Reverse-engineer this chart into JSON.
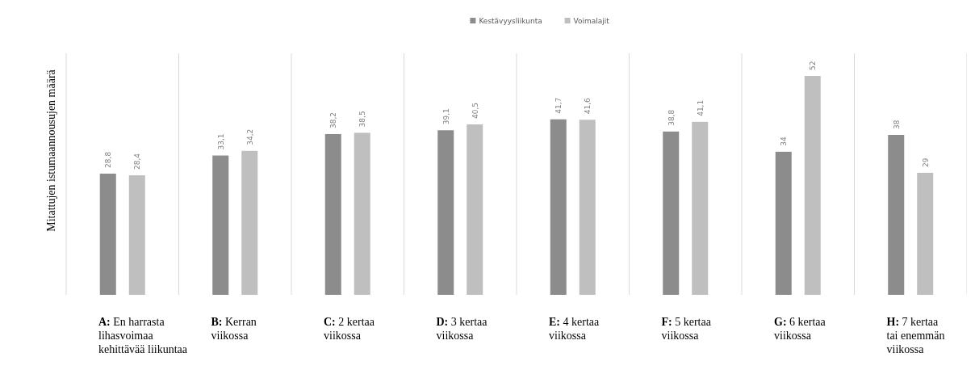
{
  "chart_data": {
    "type": "bar",
    "ylabel": "Mitattujen istumaannousujen määrä",
    "categories": [
      "A: En harrasta\nlihasvoimaa\nkehittävää liikuntaa",
      "B: Kerran\nviikossa",
      "C: 2 kertaa\nviikossa",
      "D: 3 kertaa\nviikossa",
      "E: 4 kertaa\nviikossa",
      "F: 5 kertaa\nviikossa",
      "G: 6 kertaa\nviikossa",
      "H: 7 kertaa\ntai enemmän\nviikossa"
    ],
    "series": [
      {
        "name": "Kestävyysliikunta",
        "color": "#8c8c8c",
        "values": [
          28.8,
          33.1,
          38.2,
          39.1,
          41.7,
          38.8,
          34,
          38
        ],
        "value_labels": [
          "28,8",
          "33,1",
          "38,2",
          "39,1",
          "41,7",
          "38,8",
          "34",
          "38"
        ]
      },
      {
        "name": "Voimalajit",
        "color": "#bfbfbf",
        "values": [
          28.4,
          34.2,
          38.5,
          40.5,
          41.6,
          41.1,
          52,
          29
        ],
        "value_labels": [
          "28,4",
          "34,2",
          "38,5",
          "40,5",
          "41,6",
          "41,1",
          "52",
          "29"
        ]
      }
    ],
    "ylim": [
      0,
      57
    ],
    "tick_labels": "x",
    "legend": "top"
  }
}
